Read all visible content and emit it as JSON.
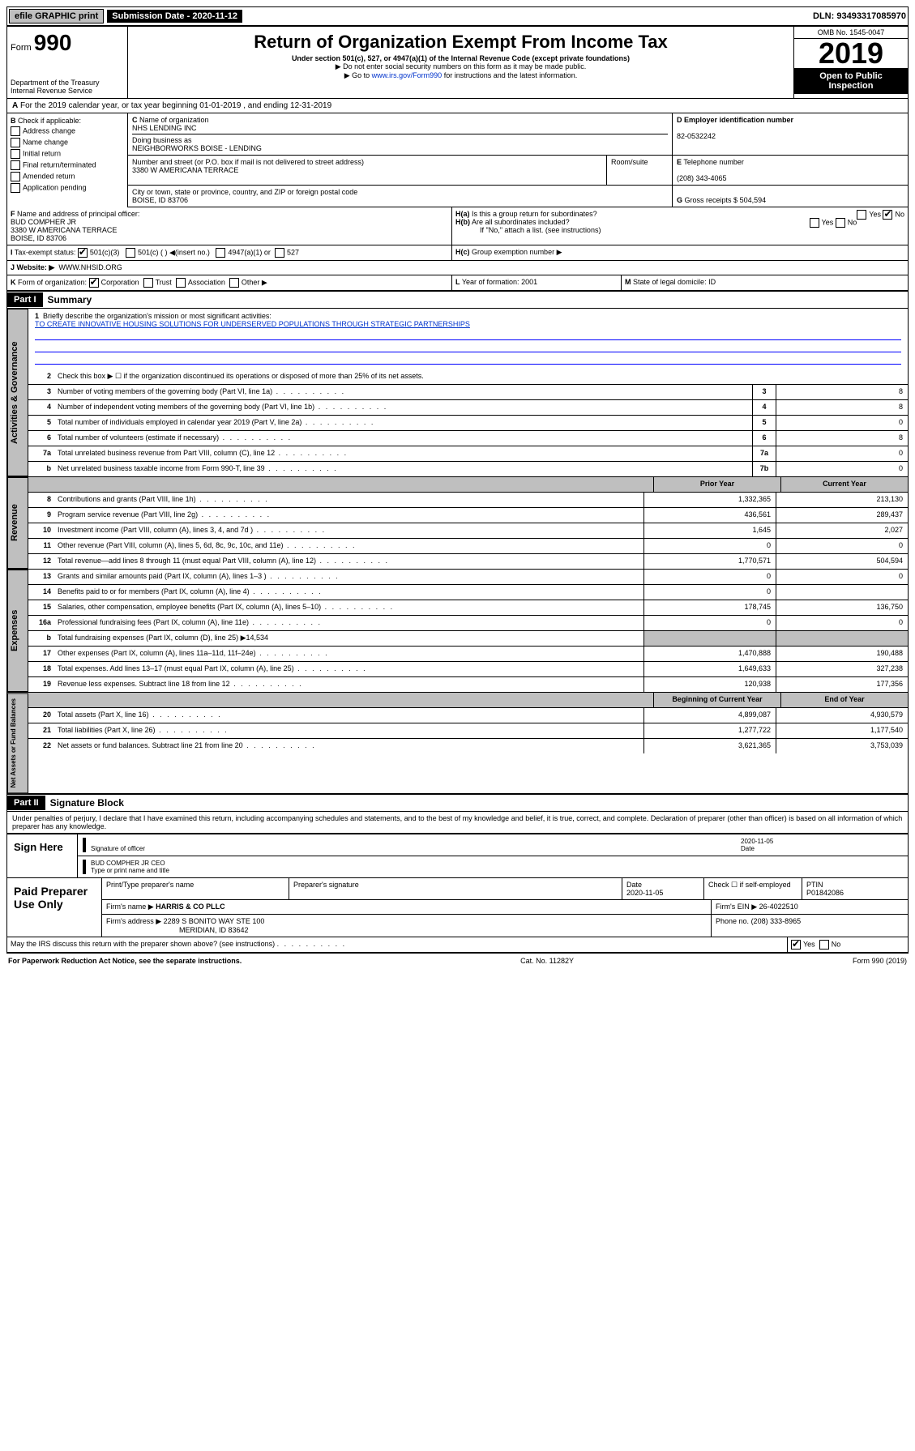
{
  "topbar": {
    "efile": "efile GRAPHIC print",
    "sub": "Submission Date",
    "subdate": "2020-11-12",
    "dln": "DLN: 93493317085970"
  },
  "header": {
    "form": "Form",
    "num": "990",
    "dept": "Department of the Treasury\nInternal Revenue Service",
    "title": "Return of Organization Exempt From Income Tax",
    "sub": "Under section 501(c), 527, or 4947(a)(1) of the Internal Revenue Code (except private foundations)",
    "l1": "▶ Do not enter social security numbers on this form as it may be made public.",
    "l2p": "▶ Go to ",
    "l2a": "www.irs.gov/Form990",
    "l2s": " for instructions and the latest information.",
    "omb": "OMB No. 1545-0047",
    "year": "2019",
    "pub": "Open to Public Inspection"
  },
  "A": {
    "text": "For the 2019 calendar year, or tax year beginning 01-01-2019    , and ending 12-31-2019"
  },
  "B": {
    "label": "Check if applicable:",
    "opts": [
      "Address change",
      "Name change",
      "Initial return",
      "Final return/terminated",
      "Amended return",
      "Application pending"
    ]
  },
  "C": {
    "label": "Name of organization",
    "name": "NHS LENDING INC",
    "dba_l": "Doing business as",
    "dba": "NEIGHBORWORKS BOISE - LENDING",
    "addr_l": "Number and street (or P.O. box if mail is not delivered to street address)",
    "addr": "3380 W AMERICANA TERRACE",
    "room_l": "Room/suite",
    "city_l": "City or town, state or province, country, and ZIP or foreign postal code",
    "city": "BOISE, ID  83706"
  },
  "D": {
    "label": "Employer identification number",
    "val": "82-0532242"
  },
  "E": {
    "label": "Telephone number",
    "val": "(208) 343-4065"
  },
  "G": {
    "label": "Gross receipts $",
    "val": "504,594"
  },
  "F": {
    "label": "Name and address of principal officer:",
    "name": "BUD COMPHER JR",
    "addr": "3380 W AMERICANA TERRACE",
    "city": "BOISE, ID  83706"
  },
  "H": {
    "a": "Is this a group return for subordinates?",
    "b": "Are all subordinates included?",
    "bnote": "If \"No,\" attach a list. (see instructions)",
    "c": "Group exemption number ▶"
  },
  "I": {
    "label": "Tax-exempt status:",
    "o1": "501(c)(3)",
    "o2": "501(c) (   ) ◀(insert no.)",
    "o3": "4947(a)(1) or",
    "o4": "527"
  },
  "J": {
    "label": "Website: ▶",
    "val": "WWW.NHSID.ORG"
  },
  "K": {
    "label": "Form of organization:",
    "o1": "Corporation",
    "o2": "Trust",
    "o3": "Association",
    "o4": "Other ▶"
  },
  "L": {
    "label": "Year of formation:",
    "val": "2001"
  },
  "M": {
    "label": "State of legal domicile:",
    "val": "ID"
  },
  "partI": {
    "hdr": "Part I",
    "title": "Summary"
  },
  "gov": {
    "l1": "Briefly describe the organization's mission or most significant activities:",
    "mission": "TO CREATE INNOVATIVE HOUSING SOLUTIONS FOR UNDERSERVED POPULATIONS THROUGH STRATEGIC PARTNERSHIPS",
    "l2": "Check this box ▶ ☐  if the organization discontinued its operations or disposed of more than 25% of its net assets.",
    "rows": [
      {
        "n": "3",
        "t": "Number of voting members of the governing body (Part VI, line 1a)",
        "b": "3",
        "v": "8"
      },
      {
        "n": "4",
        "t": "Number of independent voting members of the governing body (Part VI, line 1b)",
        "b": "4",
        "v": "8"
      },
      {
        "n": "5",
        "t": "Total number of individuals employed in calendar year 2019 (Part V, line 2a)",
        "b": "5",
        "v": "0"
      },
      {
        "n": "6",
        "t": "Total number of volunteers (estimate if necessary)",
        "b": "6",
        "v": "8"
      },
      {
        "n": "7a",
        "t": "Total unrelated business revenue from Part VIII, column (C), line 12",
        "b": "7a",
        "v": "0"
      },
      {
        "n": "b",
        "t": "Net unrelated business taxable income from Form 990-T, line 39",
        "b": "7b",
        "v": "0"
      }
    ]
  },
  "rev": {
    "hdr": {
      "py": "Prior Year",
      "cy": "Current Year"
    },
    "rows": [
      {
        "n": "8",
        "t": "Contributions and grants (Part VIII, line 1h)",
        "py": "1,332,365",
        "cy": "213,130"
      },
      {
        "n": "9",
        "t": "Program service revenue (Part VIII, line 2g)",
        "py": "436,561",
        "cy": "289,437"
      },
      {
        "n": "10",
        "t": "Investment income (Part VIII, column (A), lines 3, 4, and 7d )",
        "py": "1,645",
        "cy": "2,027"
      },
      {
        "n": "11",
        "t": "Other revenue (Part VIII, column (A), lines 5, 6d, 8c, 9c, 10c, and 11e)",
        "py": "0",
        "cy": "0"
      },
      {
        "n": "12",
        "t": "Total revenue—add lines 8 through 11 (must equal Part VIII, column (A), line 12)",
        "py": "1,770,571",
        "cy": "504,594"
      }
    ]
  },
  "exp": {
    "rows": [
      {
        "n": "13",
        "t": "Grants and similar amounts paid (Part IX, column (A), lines 1–3 )",
        "py": "0",
        "cy": "0"
      },
      {
        "n": "14",
        "t": "Benefits paid to or for members (Part IX, column (A), line 4)",
        "py": "0",
        "cy": ""
      },
      {
        "n": "15",
        "t": "Salaries, other compensation, employee benefits (Part IX, column (A), lines 5–10)",
        "py": "178,745",
        "cy": "136,750"
      },
      {
        "n": "16a",
        "t": "Professional fundraising fees (Part IX, column (A), line 11e)",
        "py": "0",
        "cy": "0"
      },
      {
        "n": "b",
        "t": "Total fundraising expenses (Part IX, column (D), line 25) ▶14,534",
        "py": "",
        "cy": "",
        "noval": true
      },
      {
        "n": "17",
        "t": "Other expenses (Part IX, column (A), lines 11a–11d, 11f–24e)",
        "py": "1,470,888",
        "cy": "190,488"
      },
      {
        "n": "18",
        "t": "Total expenses. Add lines 13–17 (must equal Part IX, column (A), line 25)",
        "py": "1,649,633",
        "cy": "327,238"
      },
      {
        "n": "19",
        "t": "Revenue less expenses. Subtract line 18 from line 12",
        "py": "120,938",
        "cy": "177,356"
      }
    ]
  },
  "net": {
    "hdr": {
      "py": "Beginning of Current Year",
      "cy": "End of Year"
    },
    "rows": [
      {
        "n": "20",
        "t": "Total assets (Part X, line 16)",
        "py": "4,899,087",
        "cy": "4,930,579"
      },
      {
        "n": "21",
        "t": "Total liabilities (Part X, line 26)",
        "py": "1,277,722",
        "cy": "1,177,540"
      },
      {
        "n": "22",
        "t": "Net assets or fund balances. Subtract line 21 from line 20",
        "py": "3,621,365",
        "cy": "3,753,039"
      }
    ]
  },
  "partII": {
    "hdr": "Part II",
    "title": "Signature Block",
    "decl": "Under penalties of perjury, I declare that I have examined this return, including accompanying schedules and statements, and to the best of my knowledge and belief, it is true, correct, and complete. Declaration of preparer (other than officer) is based on all information of which preparer has any knowledge."
  },
  "sign": {
    "label": "Sign Here",
    "sig": "Signature of officer",
    "date": "2020-11-05",
    "datel": "Date",
    "name": "BUD COMPHER JR  CEO",
    "namel": "Type or print name and title"
  },
  "paid": {
    "label": "Paid Preparer Use Only",
    "h": {
      "n": "Print/Type preparer's name",
      "s": "Preparer's signature",
      "d": "Date",
      "c": "Check ☐ if self-employed",
      "p": "PTIN"
    },
    "r": {
      "d": "2020-11-05",
      "p": "P01842086"
    },
    "fn": {
      "l": "Firm's name    ▶",
      "v": "HARRIS & CO PLLC",
      "einl": "Firm's EIN ▶",
      "ein": "26-4022510"
    },
    "fa": {
      "l": "Firm's address ▶",
      "v": "2289 S BONITO WAY STE 100",
      "v2": "MERIDIAN, ID  83642",
      "phl": "Phone no.",
      "ph": "(208) 333-8965"
    }
  },
  "discuss": {
    "t": "May the IRS discuss this return with the preparer shown above? (see instructions)",
    "y": "Yes",
    "n": "No"
  },
  "footer": {
    "l": "For Paperwork Reduction Act Notice, see the separate instructions.",
    "c": "Cat. No. 11282Y",
    "r": "Form 990 (2019)"
  },
  "vtabs": {
    "gov": "Activities & Governance",
    "rev": "Revenue",
    "exp": "Expenses",
    "net": "Net Assets or Fund Balances"
  }
}
